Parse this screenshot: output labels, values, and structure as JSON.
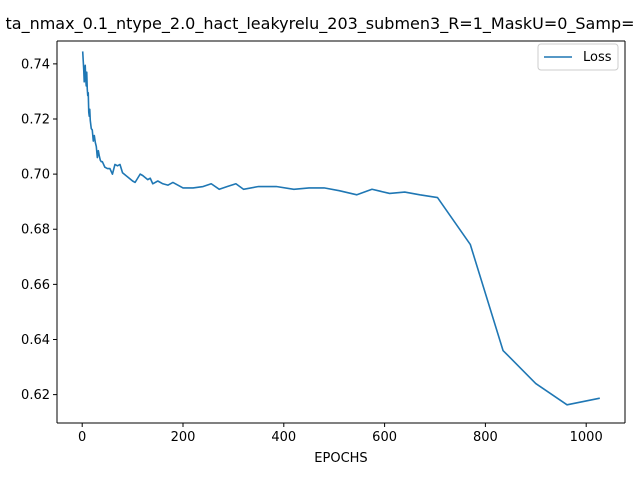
{
  "chart_data": {
    "type": "line",
    "title": "ta_nmax_0.1_ntype_2.0_hact_leakyrelu_203_submen3_R=1_MaskU=0_Samp=",
    "xlabel": "EPOCHS",
    "ylabel": "",
    "xlim": [
      -50,
      1077
    ],
    "ylim": [
      0.6097,
      0.7483
    ],
    "xticks": [
      0,
      200,
      400,
      600,
      800,
      1000
    ],
    "xtick_labels": [
      "0",
      "200",
      "400",
      "600",
      "800",
      "1000"
    ],
    "yticks": [
      0.62,
      0.64,
      0.66,
      0.68,
      0.7,
      0.72,
      0.74
    ],
    "ytick_labels": [
      "0.62",
      "0.64",
      "0.66",
      "0.68",
      "0.70",
      "0.72",
      "0.74"
    ],
    "grid": false,
    "legend": {
      "position": "upper right",
      "entries": [
        "Loss"
      ]
    },
    "series": [
      {
        "name": "Loss",
        "color": "#1f77b4",
        "x": [
          1,
          3,
          4,
          6,
          7,
          8,
          9,
          10,
          11,
          12,
          13,
          14,
          15,
          16,
          18,
          20,
          22,
          24,
          26,
          28,
          30,
          32,
          34,
          36,
          38,
          40,
          45,
          50,
          55,
          60,
          65,
          70,
          75,
          80,
          90,
          100,
          105,
          110,
          115,
          120,
          130,
          135,
          140,
          150,
          160,
          170,
          180,
          190,
          200,
          220,
          240,
          256,
          272,
          288,
          305,
          320,
          350,
          385,
          420,
          450,
          480,
          510,
          545,
          575,
          610,
          640,
          670,
          705,
          770,
          835,
          900,
          962,
          1027
        ],
        "y": [
          0.7445,
          0.738,
          0.7335,
          0.7395,
          0.7345,
          0.732,
          0.737,
          0.731,
          0.7285,
          0.7295,
          0.7225,
          0.721,
          0.7235,
          0.7195,
          0.7165,
          0.716,
          0.712,
          0.714,
          0.7115,
          0.71,
          0.706,
          0.7085,
          0.7065,
          0.705,
          0.7045,
          0.7045,
          0.7025,
          0.702,
          0.702,
          0.7,
          0.7035,
          0.703,
          0.7035,
          0.7005,
          0.699,
          0.6975,
          0.697,
          0.6985,
          0.7,
          0.6995,
          0.698,
          0.6985,
          0.6965,
          0.6975,
          0.6965,
          0.696,
          0.697,
          0.696,
          0.695,
          0.695,
          0.6955,
          0.6965,
          0.6945,
          0.6955,
          0.6965,
          0.6945,
          0.6955,
          0.6955,
          0.6945,
          0.695,
          0.695,
          0.694,
          0.6925,
          0.6945,
          0.693,
          0.6935,
          0.6925,
          0.6915,
          0.6745,
          0.636,
          0.624,
          0.6163,
          0.6187
        ]
      }
    ]
  }
}
